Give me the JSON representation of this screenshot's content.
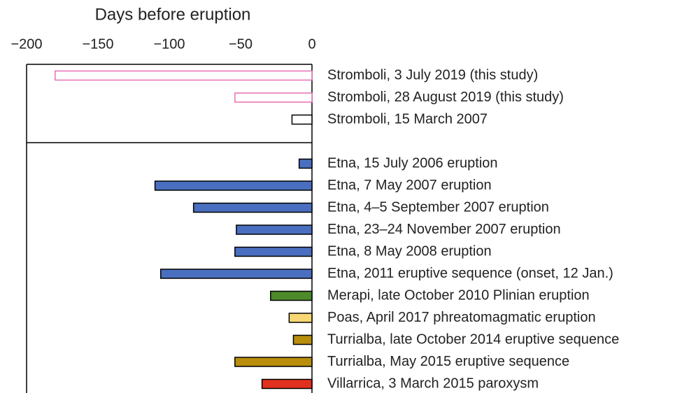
{
  "chart_data": {
    "type": "bar",
    "orientation": "horizontal",
    "title": "Days before eruption",
    "xlim": [
      -200,
      0
    ],
    "xticks": [
      {
        "value": -200,
        "label": "−200"
      },
      {
        "value": -150,
        "label": "−150"
      },
      {
        "value": -100,
        "label": "−100"
      },
      {
        "value": -50,
        "label": "−50"
      },
      0
    ],
    "groups": [
      {
        "filled": false,
        "categories": [
          "Stromboli, 3 July 2019 (this study)",
          "Stromboli, 28 August 2019 (this study)",
          "Stromboli, 15 March 2007"
        ],
        "values": [
          -180,
          -54,
          -14
        ],
        "colors": [
          "#e86fb4",
          "#e86fb4",
          "#000000"
        ]
      },
      {
        "filled": true,
        "categories": [
          "Etna, 15 July 2006 eruption",
          "Etna, 7 May 2007 eruption",
          "Etna, 4–5 September 2007 eruption",
          "Etna, 23–24 November 2007 eruption",
          "Etna, 8 May 2008 eruption",
          "Etna, 2011 eruptive sequence (onset, 12 Jan.)",
          "Merapi, late October 2010 Plinian eruption",
          "Poas, April 2017 phreatomagmatic eruption",
          "Turrialba, late October 2014 eruptive sequence",
          "Turrialba, May 2015 eruptive sequence",
          "Villarrica, 3 March 2015 paroxysm"
        ],
        "values": [
          -9,
          -110,
          -83,
          -53,
          -54,
          -106,
          -29,
          -16,
          -13,
          -54,
          -35
        ],
        "colors": [
          "#4a6fc0",
          "#4a6fc0",
          "#4a6fc0",
          "#4a6fc0",
          "#4a6fc0",
          "#4a6fc0",
          "#4d8b2a",
          "#f7d774",
          "#b88e0c",
          "#b88e0c",
          "#e2301f"
        ]
      }
    ]
  }
}
